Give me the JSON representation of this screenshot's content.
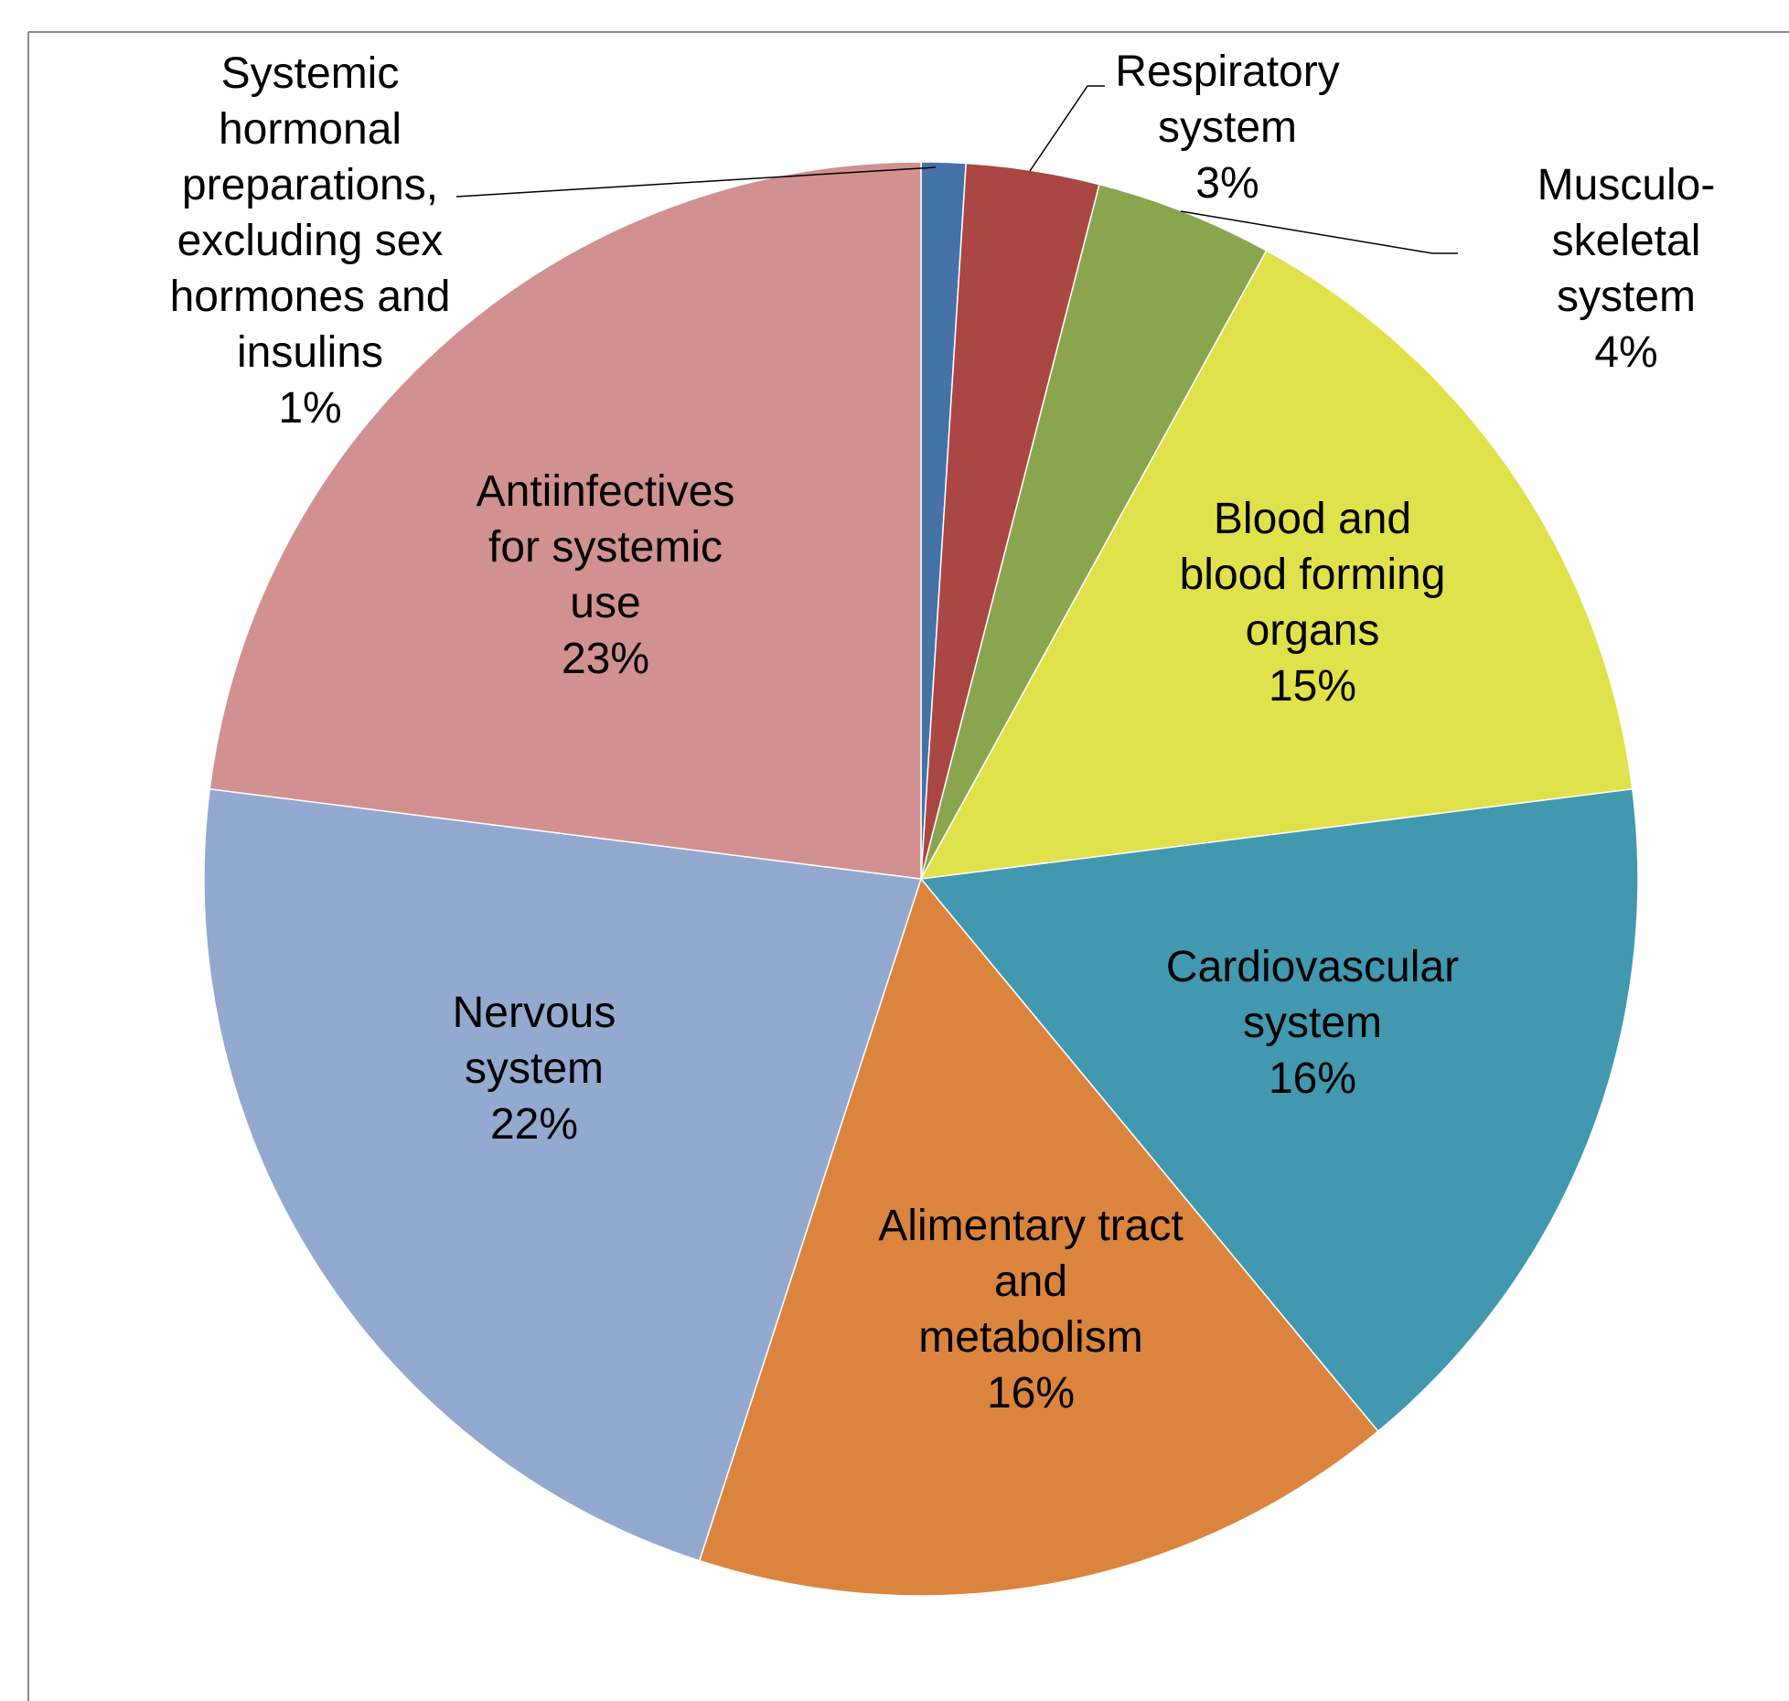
{
  "chart_data": {
    "type": "pie",
    "categories": [
      "Systemic\nhormonal\npreparations,\nexcluding sex\nhormones and\ninsulins",
      "Respiratory\nsystem",
      "Musculo-\nskeletal system",
      "Blood and\nblood forming\norgans",
      "Cardiovascular\nsystem",
      "Alimentary tract\nand\nmetabolism",
      "Nervous\nsystem",
      "Antiinfectives\nfor systemic\nuse"
    ],
    "values": [
      1,
      3,
      4,
      15,
      16,
      16,
      22,
      23
    ],
    "value_labels": [
      "1%",
      "3%",
      "4%",
      "15%",
      "16%",
      "16%",
      "22%",
      "23%"
    ],
    "colors": [
      "#4572a7",
      "#aa4643",
      "#89a54e",
      "#dfe24b",
      "#4198af",
      "#db843d",
      "#93a9cf",
      "#d09190"
    ]
  }
}
